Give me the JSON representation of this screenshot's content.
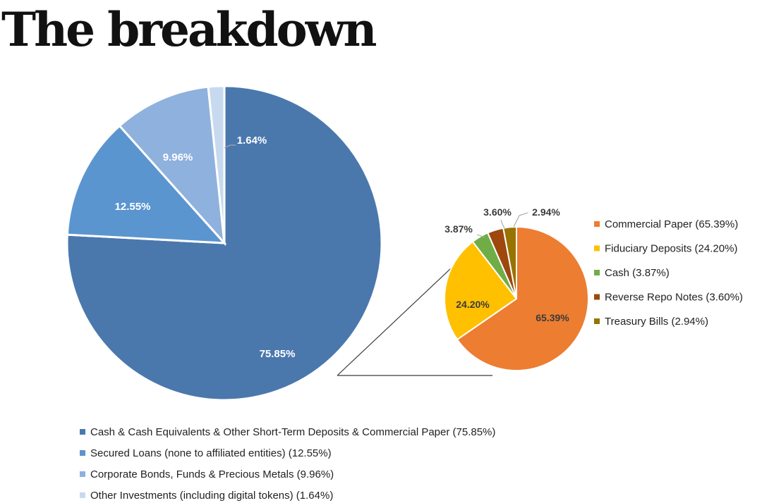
{
  "page": {
    "title": "The breakdown"
  },
  "chart_data": [
    {
      "type": "pie",
      "title": "",
      "categories": [
        "Cash & Cash Equivalents & Other Short-Term Deposits & Commercial Paper",
        "Secured Loans (none to affiliated entities)",
        "Corporate Bonds, Funds & Precious Metals",
        "Other Investments (including digital tokens)"
      ],
      "values": [
        75.85,
        12.55,
        9.96,
        1.64
      ],
      "data_labels": [
        "75.85%",
        "12.55%",
        "9.96%",
        "1.64%"
      ],
      "legend": [
        "Cash & Cash Equivalents & Other Short-Term Deposits & Commercial Paper (75.85%)",
        "Secured Loans (none to affiliated entities) (12.55%)",
        "Corporate Bonds, Funds & Precious Metals (9.96%)",
        "Other Investments (including digital tokens) (1.64%)"
      ],
      "colors": [
        "#4a78ad",
        "#5b95cf",
        "#8fb1dd",
        "#c7d9ee"
      ],
      "legend_position": "bottom",
      "exploded_slice": "Cash & Cash Equivalents & Other Short-Term Deposits & Commercial Paper"
    },
    {
      "type": "pie",
      "title": "",
      "categories": [
        "Commercial Paper",
        "Fiduciary Deposits",
        "Cash",
        "Reverse Repo Notes",
        "Treasury Bills"
      ],
      "values": [
        65.39,
        24.2,
        3.87,
        3.6,
        2.94
      ],
      "data_labels": [
        "65.39%",
        "24.20%",
        "3.87%",
        "3.60%",
        "2.94%"
      ],
      "legend": [
        "Commercial Paper (65.39%)",
        "Fiduciary Deposits (24.20%)",
        "Cash (3.87%)",
        "Reverse Repo Notes (3.60%)",
        "Treasury Bills (2.94%)"
      ],
      "colors": [
        "#ed7d31",
        "#ffc000",
        "#70ad47",
        "#9e480e",
        "#997300"
      ],
      "legend_position": "right"
    }
  ]
}
